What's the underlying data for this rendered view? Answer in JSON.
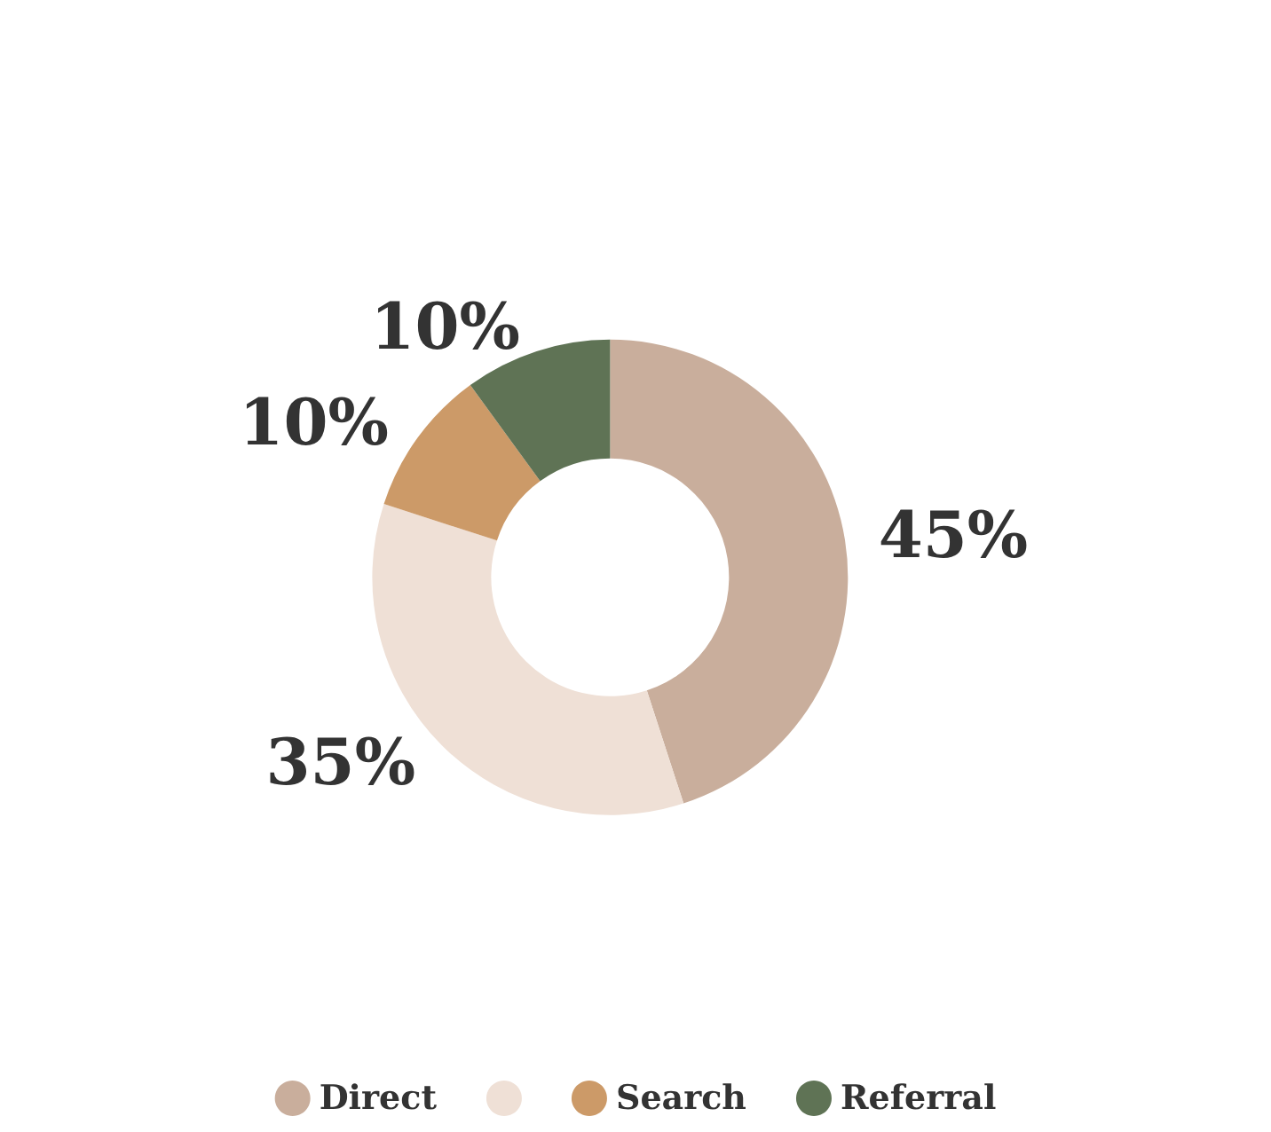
{
  "chart_data": {
    "type": "donut",
    "categories": [
      "Direct",
      null,
      "Search",
      "Referral"
    ],
    "values": [
      45,
      35,
      10,
      10
    ],
    "colors": [
      "#c9ae9c",
      "#efe0d6",
      "#cc9a68",
      "#5f7355"
    ],
    "value_labels": [
      "45%",
      "35%",
      "10%",
      "10%"
    ],
    "legend": "bottom"
  }
}
